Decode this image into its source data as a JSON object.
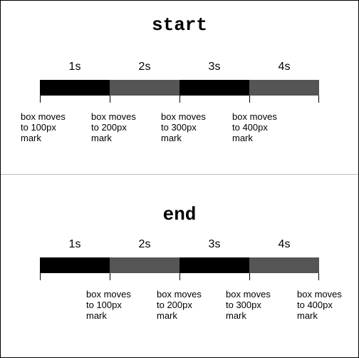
{
  "panels": [
    {
      "id": "start",
      "title": "start",
      "seconds": [
        "1s",
        "2s",
        "3s",
        "4s"
      ],
      "notes": [
        "box moves\nto 100px\nmark",
        "box moves\nto 200px\nmark",
        "box moves\nto 300px\nmark",
        "box moves\nto 400px\nmark"
      ]
    },
    {
      "id": "end",
      "title": "end",
      "seconds": [
        "1s",
        "2s",
        "3s",
        "4s"
      ],
      "notes": [
        "box moves\nto 100px\nmark",
        "box moves\nto 200px\nmark",
        "box moves\nto 300px\nmark",
        "box moves\nto 400px\nmark"
      ]
    }
  ],
  "colors": {
    "segment_dark": "#000000",
    "segment_gray": "#555555",
    "divider": "#bdbdbd"
  }
}
